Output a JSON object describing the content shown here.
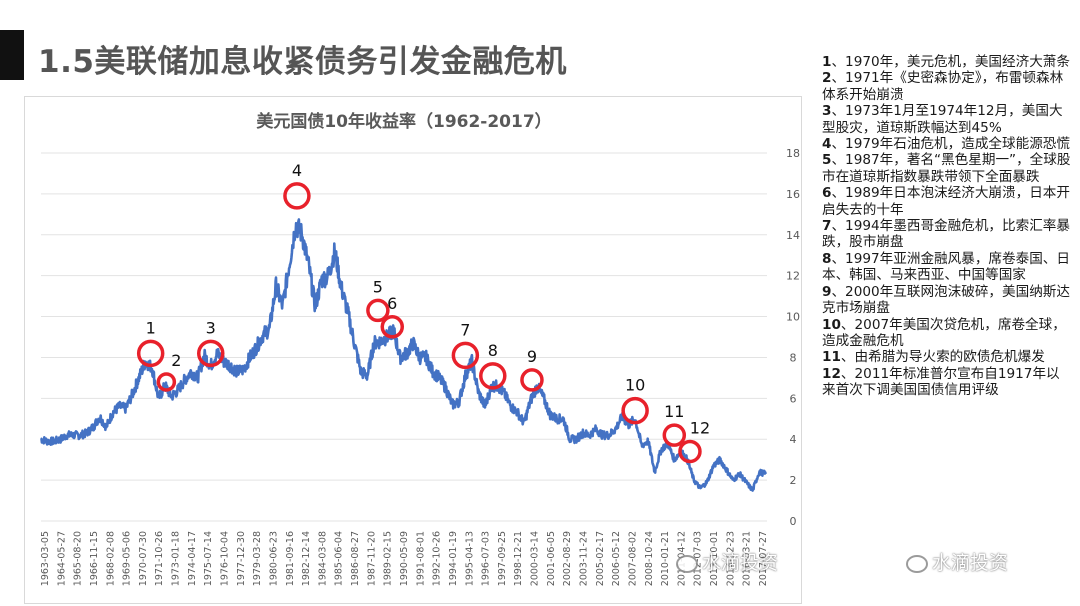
{
  "slide": {
    "title": "1.5美联储加息收紧债务引发金融危机"
  },
  "chart_data": {
    "type": "line",
    "title": "美元国债10年收益率（1962-2017）",
    "xlabel": "",
    "ylabel": "",
    "ylim": [
      0,
      18
    ],
    "yticks": [
      0,
      2,
      4,
      6,
      8,
      10,
      12,
      14,
      16,
      18
    ],
    "grid": true,
    "line_color": "#4472c4",
    "marker_color": "#e8212b",
    "x_tick_labels": [
      "1963-03-05",
      "1964-05-27",
      "1965-08-20",
      "1966-11-15",
      "1968-02-08",
      "1969-05-06",
      "1970-07-30",
      "1971-10-26",
      "1973-01-18",
      "1974-04-17",
      "1975-07-14",
      "1976-10-04",
      "1977-12-30",
      "1979-03-28",
      "1980-06-23",
      "1981-09-16",
      "1982-12-14",
      "1984-03-08",
      "1985-06-04",
      "1986-08-27",
      "1987-11-20",
      "1989-02-15",
      "1990-05-09",
      "1991-08-01",
      "1992-10-26",
      "1994-01-19",
      "1995-04-13",
      "1996-07-03",
      "1997-09-25",
      "1998-12-21",
      "2000-03-14",
      "2001-06-05",
      "2002-08-29",
      "2003-11-24",
      "2005-02-17",
      "2006-05-12",
      "2007-08-02",
      "2008-10-24",
      "2010-01-21",
      "2011-04-12",
      "2012-07-03",
      "2013-10-01",
      "2014-12-23",
      "2016-03-21",
      "2017-07-27"
    ],
    "x": [
      1962.0,
      1962.5,
      1963.0,
      1963.5,
      1964.0,
      1964.5,
      1965.0,
      1965.5,
      1966.0,
      1966.5,
      1967.0,
      1967.5,
      1968.0,
      1968.5,
      1969.0,
      1969.5,
      1970.0,
      1970.5,
      1971.0,
      1971.5,
      1972.0,
      1972.5,
      1973.0,
      1973.5,
      1974.0,
      1974.5,
      1975.0,
      1975.5,
      1976.0,
      1976.5,
      1977.0,
      1977.5,
      1978.0,
      1978.5,
      1979.0,
      1979.5,
      1980.0,
      1980.5,
      1981.0,
      1981.5,
      1982.0,
      1982.5,
      1983.0,
      1983.5,
      1984.0,
      1984.5,
      1985.0,
      1985.5,
      1986.0,
      1986.5,
      1987.0,
      1987.5,
      1988.0,
      1988.5,
      1989.0,
      1989.5,
      1990.0,
      1990.5,
      1991.0,
      1991.5,
      1992.0,
      1992.5,
      1993.0,
      1993.5,
      1994.0,
      1994.5,
      1995.0,
      1995.5,
      1996.0,
      1996.5,
      1997.0,
      1997.5,
      1998.0,
      1998.5,
      1999.0,
      1999.5,
      2000.0,
      2000.5,
      2001.0,
      2001.5,
      2002.0,
      2002.5,
      2003.0,
      2003.5,
      2004.0,
      2004.5,
      2005.0,
      2005.5,
      2006.0,
      2006.5,
      2007.0,
      2007.5,
      2008.0,
      2008.5,
      2009.0,
      2009.5,
      2010.0,
      2010.5,
      2011.0,
      2011.5,
      2012.0,
      2012.5,
      2013.0,
      2013.5,
      2014.0,
      2014.5,
      2015.0,
      2015.5,
      2016.0,
      2016.5,
      2017.0,
      2017.5
    ],
    "values": [
      4.0,
      3.9,
      3.9,
      4.0,
      4.2,
      4.2,
      4.2,
      4.3,
      4.6,
      5.1,
      4.6,
      5.3,
      5.6,
      5.5,
      6.2,
      7.0,
      7.8,
      7.5,
      6.0,
      6.6,
      6.1,
      6.4,
      6.9,
      7.3,
      7.0,
      8.1,
      7.6,
      8.2,
      7.8,
      7.6,
      7.3,
      7.4,
      8.0,
      8.5,
      9.1,
      9.4,
      11.5,
      10.5,
      12.5,
      14.5,
      14.0,
      12.5,
      10.5,
      11.8,
      12.0,
      13.2,
      11.4,
      10.2,
      8.7,
      7.3,
      7.1,
      8.7,
      8.8,
      9.0,
      9.3,
      8.0,
      8.2,
      8.7,
      8.0,
      8.0,
      7.3,
      7.0,
      6.5,
      5.7,
      5.8,
      7.1,
      7.8,
      6.3,
      5.6,
      6.6,
      6.6,
      6.2,
      5.6,
      5.3,
      4.8,
      5.9,
      6.6,
      6.0,
      5.2,
      5.0,
      5.0,
      4.0,
      4.0,
      4.3,
      4.2,
      4.5,
      4.2,
      4.2,
      4.5,
      5.1,
      4.7,
      5.0,
      3.7,
      3.9,
      2.4,
      3.5,
      3.8,
      3.0,
      3.4,
      3.0,
      2.0,
      1.6,
      1.9,
      2.7,
      3.0,
      2.5,
      2.0,
      2.3,
      1.9,
      1.5,
      2.4,
      2.3
    ],
    "annotations": [
      {
        "label": "1",
        "x": 1970.4,
        "y": 8.2
      },
      {
        "label": "2",
        "x": 1971.6,
        "y": 6.8
      },
      {
        "label": "3",
        "x": 1975.0,
        "y": 8.2
      },
      {
        "label": "4",
        "x": 1981.6,
        "y": 15.9
      },
      {
        "label": "5",
        "x": 1987.8,
        "y": 10.3
      },
      {
        "label": "6",
        "x": 1988.9,
        "y": 9.5
      },
      {
        "label": "7",
        "x": 1994.5,
        "y": 8.1
      },
      {
        "label": "8",
        "x": 1996.6,
        "y": 7.1
      },
      {
        "label": "9",
        "x": 1999.6,
        "y": 6.9
      },
      {
        "label": "10",
        "x": 2007.5,
        "y": 5.4
      },
      {
        "label": "11",
        "x": 2010.5,
        "y": 4.2
      },
      {
        "label": "12",
        "x": 2011.7,
        "y": 3.4
      }
    ]
  },
  "notes": [
    {
      "num": "1",
      "text": "、1970年，美元危机，美国经济大萧条"
    },
    {
      "num": "2",
      "text": "、1971年《史密森协定》，布雷顿森林体系开始崩溃"
    },
    {
      "num": "3",
      "text": "、1973年1月至1974年12月，美国大型股灾，道琼斯跌幅达到45%"
    },
    {
      "num": "4",
      "text": "、1979年石油危机，造成全球能源恐慌"
    },
    {
      "num": "5",
      "text": "、1987年，著名“黑色星期一”，全球股市在道琼斯指数暴跌带领下全面暴跌"
    },
    {
      "num": "6",
      "text": "、1989年日本泡沫经济大崩溃，日本开启失去的十年"
    },
    {
      "num": "7",
      "text": "、1994年墨西哥金融危机，比索汇率暴跌，股市崩盘"
    },
    {
      "num": "8",
      "text": "、1997年亚洲金融风暴，席卷泰国、日本、韩国、马来西亚、中国等国家"
    },
    {
      "num": "9",
      "text": "、2000年互联网泡沫破碎，美国纳斯达克市场崩盘"
    },
    {
      "num": "10",
      "text": "、2007年美国次贷危机，席卷全球，造成金融危机"
    },
    {
      "num": "11",
      "text": "、由希腊为导火索的欧债危机爆发"
    },
    {
      "num": "12",
      "text": "、2011年标准普尔宣布自1917年以来首次下调美国国债信用评级"
    }
  ],
  "watermark": {
    "text": "水滴投资"
  }
}
